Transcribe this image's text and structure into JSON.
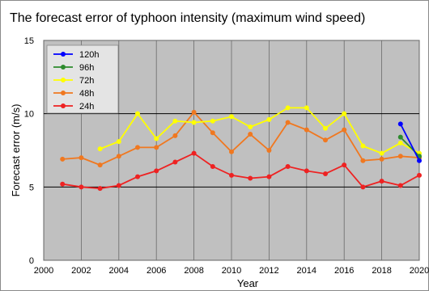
{
  "chart_data": {
    "type": "line",
    "title": "The forecast error of typhoon intensity (maximum wind speed)",
    "xlabel": "Year",
    "ylabel": "Forecast error (m/s)",
    "xlim": [
      2000,
      2020
    ],
    "ylim": [
      0,
      15
    ],
    "x_ticks": [
      2000,
      2002,
      2004,
      2006,
      2008,
      2010,
      2012,
      2014,
      2016,
      2018,
      2020
    ],
    "y_ticks": [
      0,
      5,
      10,
      15
    ],
    "grid": true,
    "legend_position": "top-left",
    "plot_background": "#c0c0c0",
    "series": [
      {
        "name": "120h",
        "color": "#0000ff",
        "x": [
          2019,
          2020
        ],
        "values": [
          9.3,
          6.8
        ]
      },
      {
        "name": "96h",
        "color": "#2e8b2e",
        "x": [
          2019,
          2020
        ],
        "values": [
          8.4,
          7.1
        ]
      },
      {
        "name": "72h",
        "color": "#ffff00",
        "x": [
          2003,
          2004,
          2005,
          2006,
          2007,
          2008,
          2009,
          2010,
          2011,
          2012,
          2013,
          2014,
          2015,
          2016,
          2017,
          2018,
          2019,
          2020
        ],
        "values": [
          7.6,
          8.1,
          10.0,
          8.3,
          9.5,
          9.4,
          9.5,
          9.8,
          9.1,
          9.6,
          10.4,
          10.4,
          9.0,
          10.0,
          7.8,
          7.3,
          8.0,
          7.3
        ]
      },
      {
        "name": "48h",
        "color": "#f07820",
        "x": [
          2001,
          2002,
          2003,
          2004,
          2005,
          2006,
          2007,
          2008,
          2009,
          2010,
          2011,
          2012,
          2013,
          2014,
          2015,
          2016,
          2017,
          2018,
          2019,
          2020
        ],
        "values": [
          6.9,
          7.0,
          6.5,
          7.1,
          7.7,
          7.7,
          8.5,
          10.1,
          8.7,
          7.4,
          8.6,
          7.5,
          9.4,
          8.9,
          8.2,
          8.9,
          6.8,
          6.9,
          7.1,
          7.0
        ]
      },
      {
        "name": "24h",
        "color": "#ee2222",
        "x": [
          2001,
          2002,
          2003,
          2004,
          2005,
          2006,
          2007,
          2008,
          2009,
          2010,
          2011,
          2012,
          2013,
          2014,
          2015,
          2016,
          2017,
          2018,
          2019,
          2020
        ],
        "values": [
          5.2,
          5.0,
          4.9,
          5.1,
          5.7,
          6.1,
          6.7,
          7.3,
          6.4,
          5.8,
          5.6,
          5.7,
          6.4,
          6.1,
          5.9,
          6.5,
          5.0,
          5.4,
          5.1,
          5.8
        ]
      }
    ]
  }
}
